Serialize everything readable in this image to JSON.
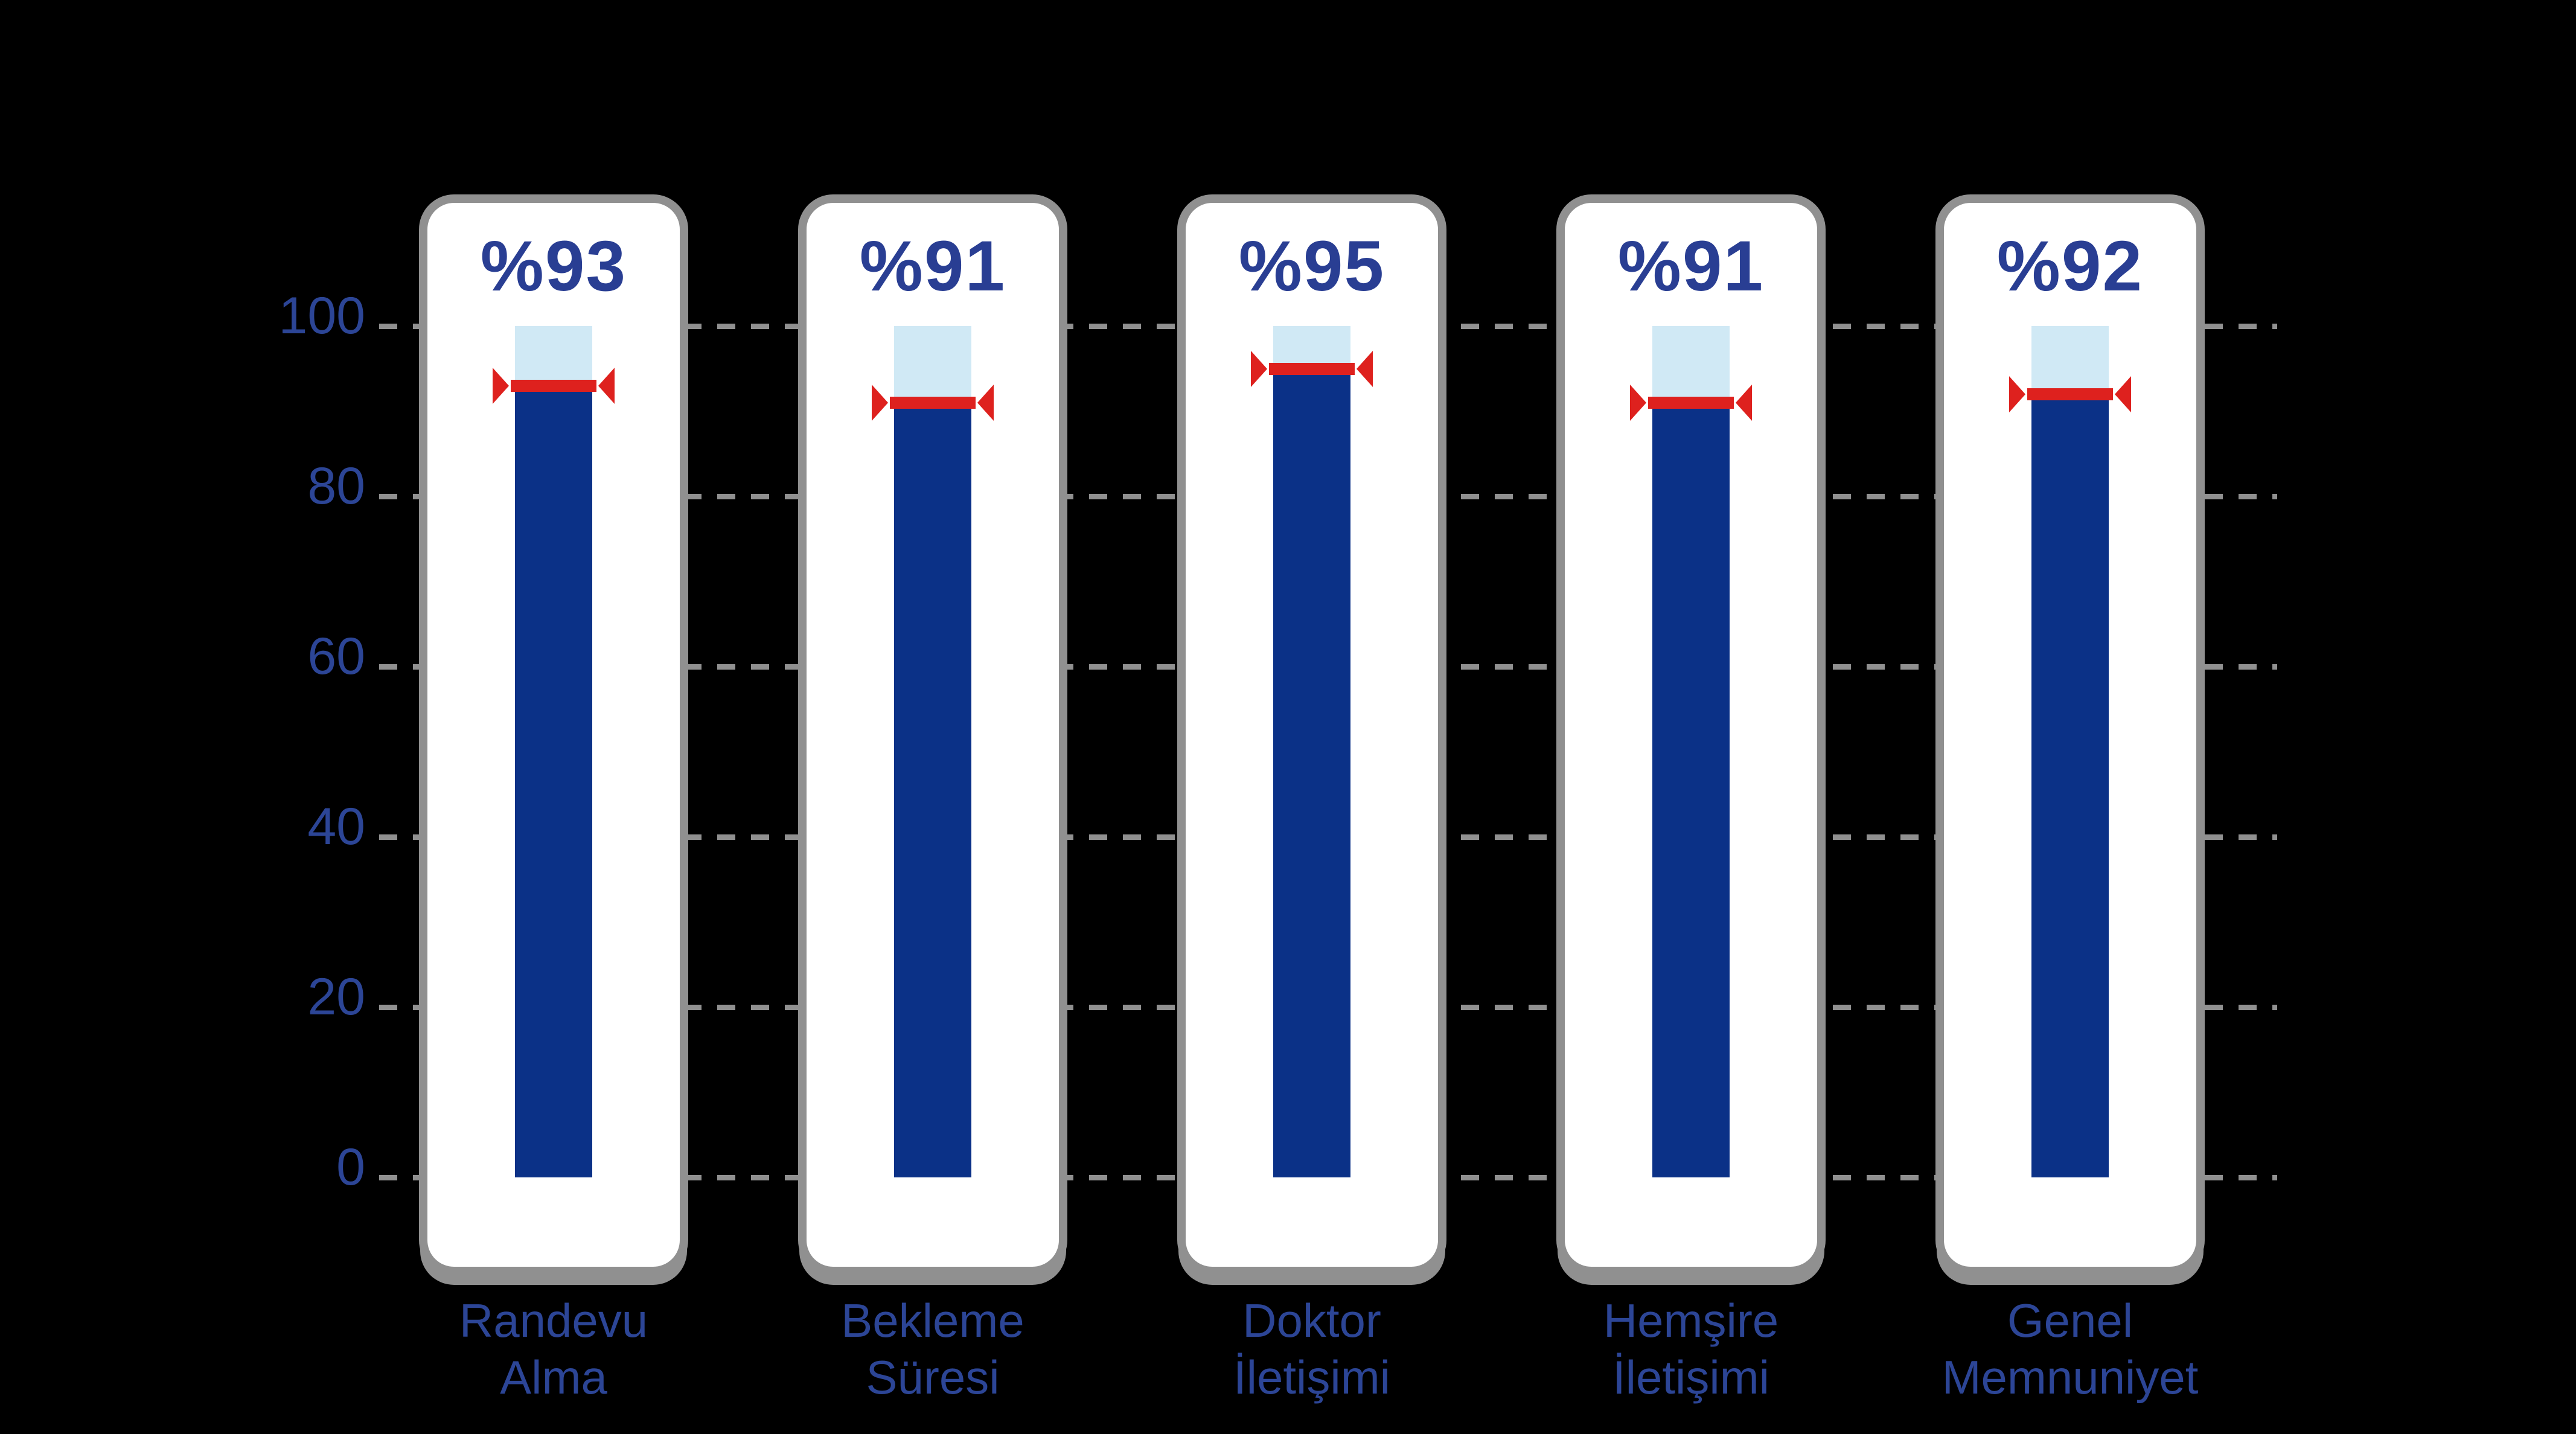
{
  "title": "",
  "colors": {
    "background": "#000000",
    "card_background": "#ffffff",
    "card_border": "#909090",
    "gridline": "#909090",
    "axis_label_text": "#2c4596",
    "category_label_text": "#2c4596",
    "value_label_text": "#293e93",
    "bar_fill": "#0b3187",
    "bar_track": "#d0e9f5",
    "marker_red": "#de211e"
  },
  "chart_data": {
    "type": "bar",
    "title": "",
    "categories": [
      "Randevu Alma",
      "Bekleme Süresi",
      "Doktor İletişimi",
      "Hemşire İletişimi",
      "Genel Memnuniyet"
    ],
    "category_label_lines": [
      "Randevu\nAlma",
      "Bekleme\nSüresi",
      "Doktor\nİletişimi",
      "Hemşire\nİletişimi",
      "Genel\nMemnuniyet"
    ],
    "values": [
      93,
      91,
      95,
      91,
      92
    ],
    "value_labels": [
      "%93",
      "%91",
      "%95",
      "%91",
      "%92"
    ],
    "unit": "percent",
    "xlabel": "",
    "ylabel": "",
    "ylim": [
      0,
      100
    ],
    "y_ticks": [
      100,
      80,
      60,
      40,
      20,
      0
    ],
    "y_tick_labels": [
      "100",
      "80",
      "60",
      "40",
      "20",
      "0"
    ],
    "grid": "horizontal-dashed",
    "legend_position": "none",
    "bar_style": "dark blue fill over light blue track inside white rounded card",
    "marker_style": "red horizontal line with inward-pointing red arrowheads at value level"
  }
}
